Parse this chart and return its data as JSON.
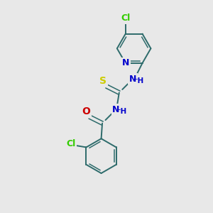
{
  "background_color": "#e8e8e8",
  "bond_color": "#2d6b6b",
  "cl_color": "#33cc00",
  "n_color": "#0000cc",
  "o_color": "#cc0000",
  "s_color": "#cccc00",
  "figsize": [
    3.0,
    3.0
  ],
  "dpi": 100,
  "xlim": [
    0,
    10
  ],
  "ylim": [
    0,
    10
  ]
}
